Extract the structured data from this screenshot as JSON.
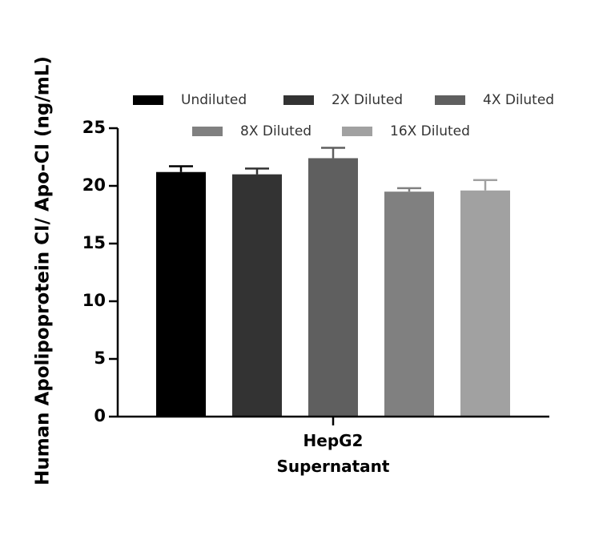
{
  "chart_data": {
    "type": "bar",
    "title": "",
    "ylabel": "Human Apolipoprotein CI/ Apo-CI (ng/mL)",
    "xlabel": "",
    "category_lines": [
      "HepG2",
      "Supernatant"
    ],
    "ylim": [
      0,
      25
    ],
    "yticks": [
      0,
      5,
      10,
      15,
      20,
      25
    ],
    "grid": false,
    "legend_position": "top",
    "series": [
      {
        "name": "Undiluted",
        "value": 21.2,
        "error": 0.5,
        "color": "#000000"
      },
      {
        "name": "2X Diluted",
        "value": 21.0,
        "error": 0.5,
        "color": "#333333"
      },
      {
        "name": "4X Diluted",
        "value": 22.4,
        "error": 0.9,
        "color": "#5f5f5f"
      },
      {
        "name": "8X Diluted",
        "value": 19.5,
        "error": 0.3,
        "color": "#808080"
      },
      {
        "name": "16X Diluted",
        "value": 19.6,
        "error": 0.9,
        "color": "#a1a1a1"
      }
    ]
  }
}
